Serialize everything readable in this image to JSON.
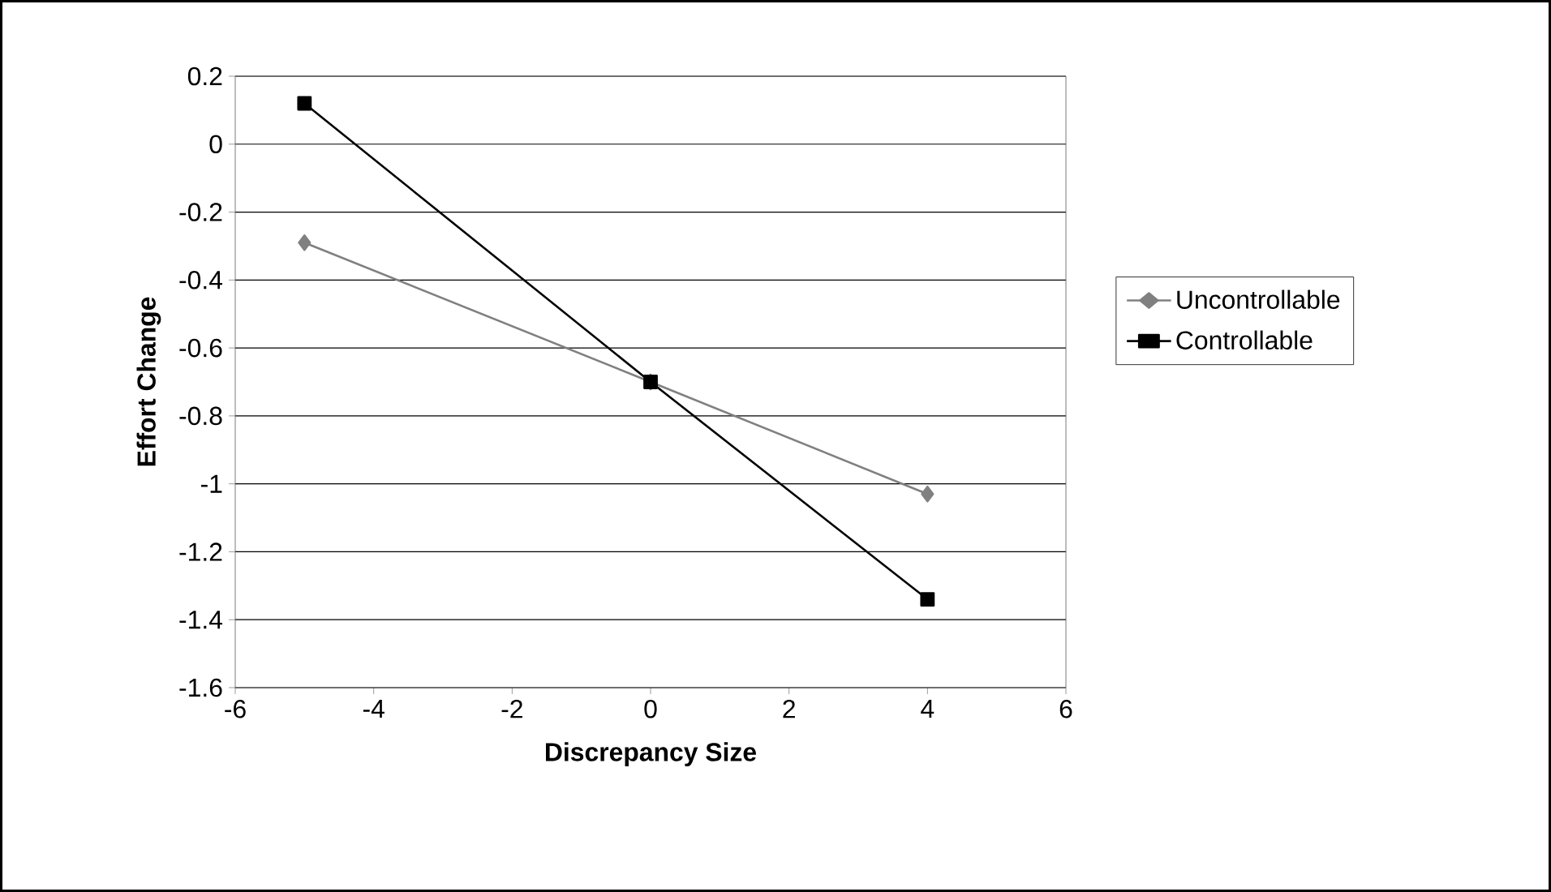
{
  "chart_data": {
    "type": "line",
    "xlabel": "Discrepancy Size",
    "ylabel": "Effort Change",
    "x": [
      -5,
      0,
      4
    ],
    "series": [
      {
        "name": "Uncontrollable",
        "color": "#808080",
        "marker": "diamond",
        "values": [
          -0.29,
          -0.7,
          -1.03
        ]
      },
      {
        "name": "Controllable",
        "color": "#000000",
        "marker": "square",
        "values": [
          0.12,
          -0.7,
          -1.34
        ]
      }
    ],
    "xlim": [
      -6,
      6
    ],
    "xticks": [
      -6,
      -4,
      -2,
      0,
      2,
      4,
      6
    ],
    "ylim": [
      -1.6,
      0.2
    ],
    "yticks": [
      0.2,
      0,
      -0.2,
      -0.4,
      -0.6,
      -0.8,
      -1,
      -1.2,
      -1.4,
      -1.6
    ],
    "grid": "y",
    "legend": "right",
    "line_style": "solid"
  }
}
